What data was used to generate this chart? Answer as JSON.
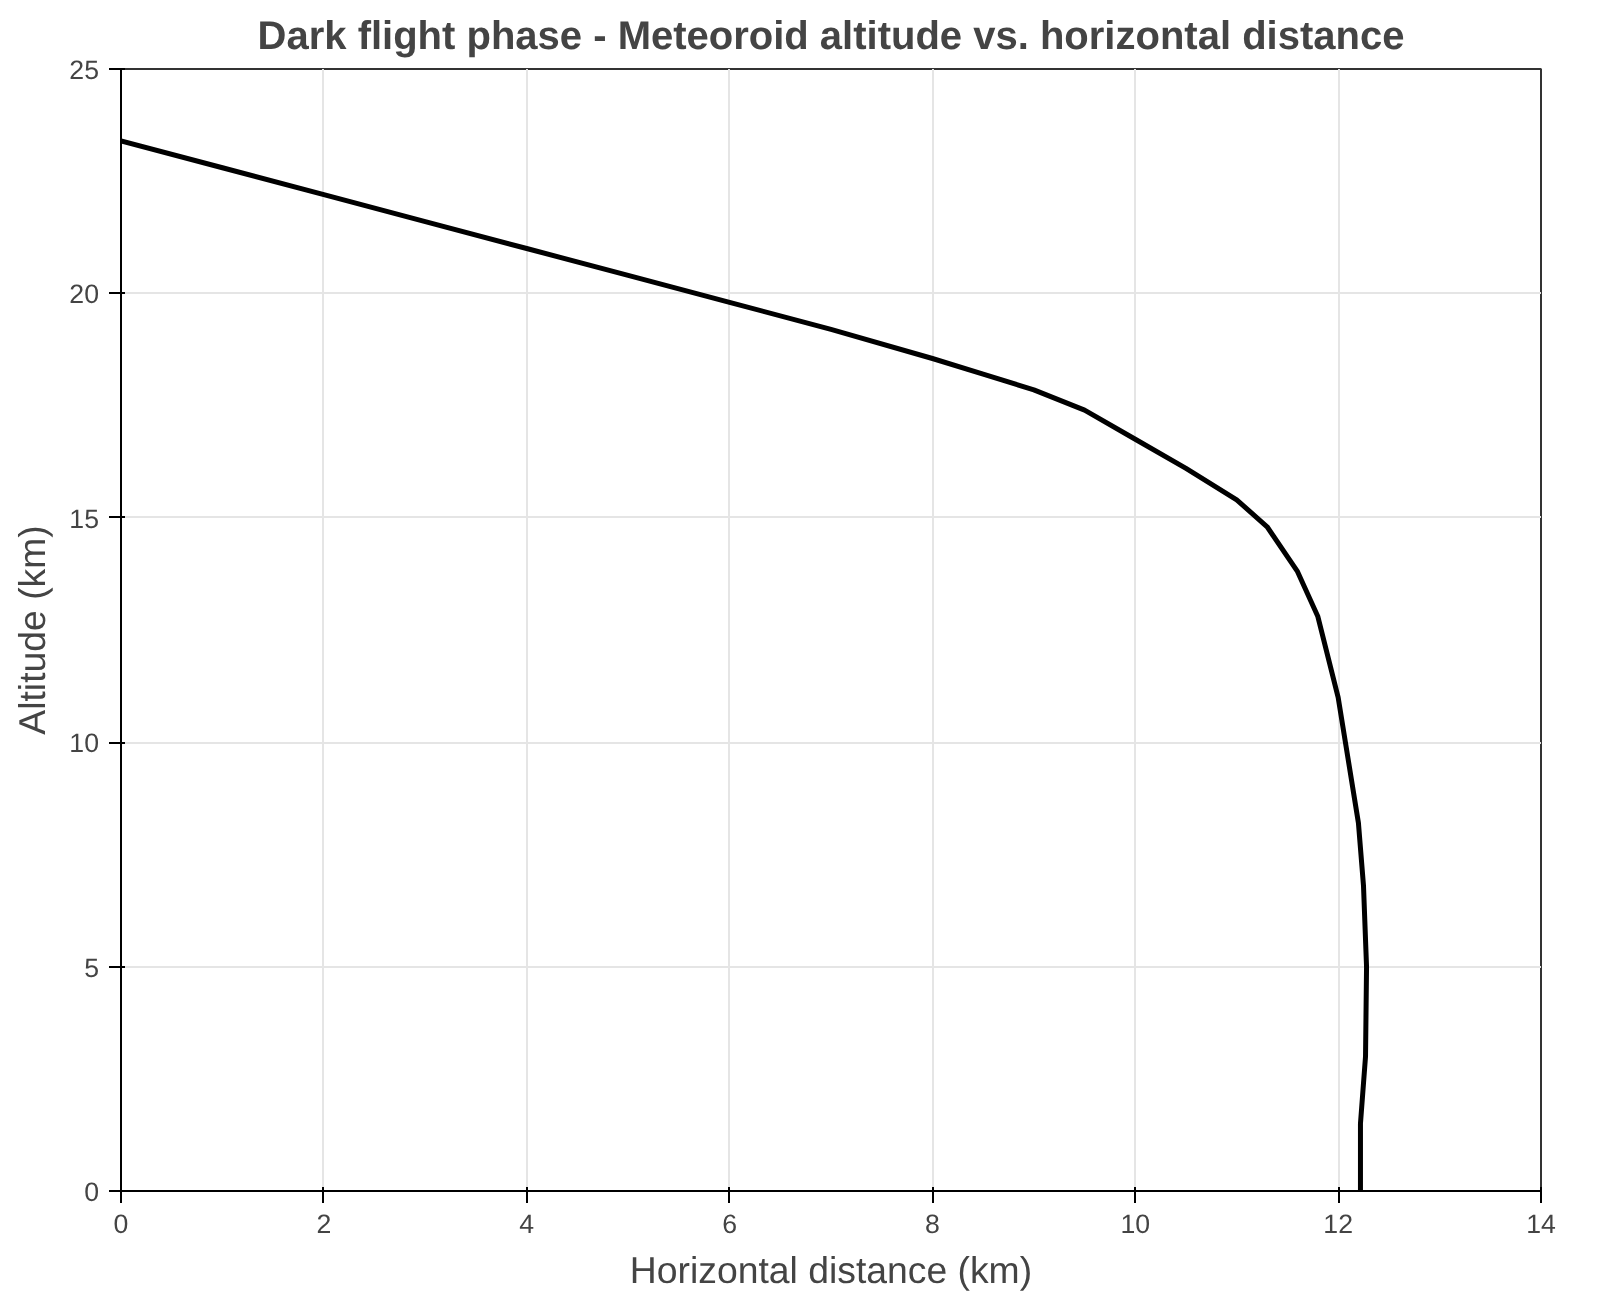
{
  "chart_data": {
    "type": "line",
    "title": "Dark flight phase - Meteoroid altitude vs. horizontal distance",
    "xlabel": "Horizontal distance (km)",
    "ylabel": "Altitude (km)",
    "xlim": [
      0,
      14
    ],
    "xticks": [
      0,
      2,
      4,
      6,
      8,
      10,
      12,
      14
    ],
    "ylim": [
      0,
      25
    ],
    "yticks": [
      0,
      5,
      10,
      15,
      20,
      25
    ],
    "grid": true,
    "line_style": "solid",
    "marker": "none",
    "series": [
      {
        "color": "#000000",
        "x": [
          0,
          1,
          2,
          3,
          4,
          5,
          6,
          7,
          8,
          8.5,
          9,
          9.5,
          10,
          10.5,
          11,
          11.3,
          11.6,
          11.8,
          12.0,
          12.1,
          12.2,
          12.25,
          12.28,
          12.27,
          12.22,
          12.22
        ],
        "values": [
          23.4,
          22.8,
          22.2,
          21.6,
          21.0,
          20.4,
          19.8,
          19.2,
          18.55,
          18.2,
          17.85,
          17.4,
          16.75,
          16.1,
          15.4,
          14.8,
          13.8,
          12.8,
          11.0,
          9.6,
          8.2,
          6.8,
          5.0,
          3.0,
          1.5,
          0
        ]
      }
    ]
  }
}
